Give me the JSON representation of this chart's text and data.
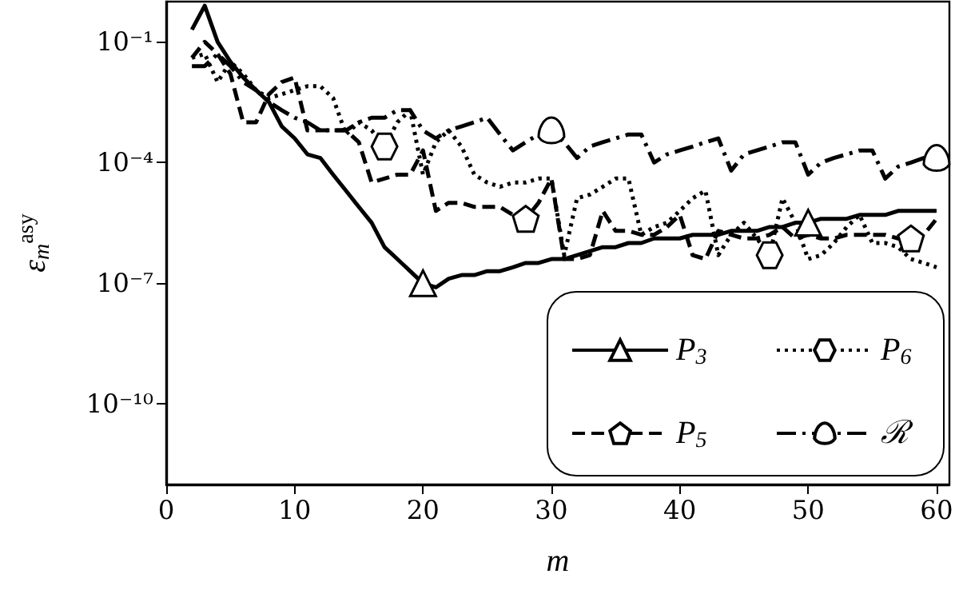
{
  "chart_data": {
    "type": "line",
    "xlabel": "m",
    "ylabel": "ε$_{m}$$^{asy}$",
    "x": [
      2,
      3,
      4,
      5,
      6,
      7,
      8,
      9,
      10,
      11,
      12,
      13,
      14,
      15,
      16,
      17,
      18,
      19,
      20,
      21,
      22,
      23,
      24,
      25,
      26,
      27,
      28,
      29,
      30,
      31,
      32,
      33,
      34,
      35,
      36,
      37,
      38,
      39,
      40,
      41,
      42,
      43,
      44,
      45,
      46,
      47,
      48,
      49,
      50,
      51,
      52,
      53,
      54,
      55,
      56,
      57,
      58,
      59,
      60
    ],
    "series": [
      {
        "name": "P$_{3}$",
        "color": "#000000",
        "line_style": "solid",
        "values": [
          0.2,
          0.79,
          0.1,
          0.032,
          0.013,
          0.0063,
          0.0032,
          0.00079,
          0.0004,
          0.00016,
          0.00013,
          5e-05,
          2e-05,
          7.9e-06,
          3.2e-06,
          7.9e-07,
          4e-07,
          2e-07,
          1e-07,
          7.9e-08,
          1.3e-07,
          1.6e-07,
          1.6e-07,
          2e-07,
          2e-07,
          2.5e-07,
          3.2e-07,
          3.2e-07,
          4e-07,
          4e-07,
          5e-07,
          6.3e-07,
          7.9e-07,
          7.9e-07,
          1e-06,
          1e-06,
          1.3e-06,
          1.3e-06,
          1.3e-06,
          1.6e-06,
          1.6e-06,
          1.6e-06,
          2e-06,
          2e-06,
          2e-06,
          2.5e-06,
          2.5e-06,
          3.2e-06,
          3.2e-06,
          4e-06,
          4e-06,
          4e-06,
          5e-06,
          5e-06,
          5e-06,
          6.3e-06,
          6.3e-06,
          6.3e-06,
          6.3e-06
        ]
      },
      {
        "name": "P$_{5}$",
        "color": "#000000",
        "line_style": "dashed",
        "values": [
          0.04,
          0.1,
          0.05,
          0.016,
          0.001,
          0.001,
          0.005,
          0.01,
          0.013,
          0.00063,
          0.00063,
          0.00063,
          0.00063,
          0.00032,
          3.2e-05,
          4e-05,
          5e-05,
          5e-05,
          0.0002,
          6.3e-06,
          1e-05,
          1e-05,
          7.9e-06,
          7.9e-06,
          7.9e-06,
          5e-06,
          4e-06,
          1e-05,
          4e-05,
          4e-07,
          4e-07,
          5e-07,
          6.3e-06,
          2e-06,
          2e-06,
          1.6e-06,
          1.6e-06,
          2.5e-06,
          5e-06,
          5e-07,
          4e-07,
          2e-06,
          1.6e-06,
          1.3e-06,
          1.3e-06,
          1.6e-06,
          2.5e-06,
          1.3e-06,
          1.6e-06,
          1.3e-06,
          1.3e-06,
          1.6e-06,
          1.6e-06,
          1.6e-06,
          1.6e-06,
          1.3e-06,
          1.3e-06,
          1.6e-06,
          4e-06
        ]
      },
      {
        "name": "P$_{6}$",
        "color": "#000000",
        "line_style": "dotted",
        "values": [
          0.04,
          0.05,
          0.01,
          0.032,
          0.016,
          0.0063,
          0.004,
          0.005,
          0.0063,
          0.0079,
          0.0079,
          0.004,
          0.0005,
          0.001,
          0.00063,
          0.00025,
          0.001,
          0.002,
          5e-05,
          0.00032,
          0.00063,
          0.00025,
          5e-05,
          3.2e-05,
          2.5e-05,
          3.2e-05,
          3.2e-05,
          4e-05,
          4e-05,
          5e-07,
          1.3e-05,
          1.6e-05,
          2.5e-05,
          4e-05,
          4e-05,
          1.6e-06,
          2.5e-06,
          3.2e-06,
          6.3e-06,
          1.3e-05,
          2e-05,
          5e-07,
          1.6e-06,
          3.2e-06,
          1.3e-06,
          5e-07,
          1.3e-05,
          3.2e-06,
          4e-07,
          5e-07,
          1e-06,
          2.5e-06,
          5e-06,
          1e-06,
          1e-06,
          7.9e-07,
          4e-07,
          3.2e-07,
          2.5e-07
        ]
      },
      {
        "name": "ℛ",
        "color": "#000000",
        "line_style": "dashdot",
        "values": [
          0.025,
          0.025,
          0.05,
          0.025,
          0.01,
          0.0063,
          0.0032,
          0.002,
          0.0013,
          0.001,
          0.00063,
          0.00063,
          0.00063,
          0.001,
          0.0013,
          0.0013,
          0.002,
          0.002,
          0.00063,
          0.0004,
          0.00063,
          0.00079,
          0.001,
          0.0013,
          0.0005,
          0.0002,
          0.00032,
          0.0005,
          0.00063,
          0.00032,
          0.00013,
          0.00025,
          0.00032,
          0.0004,
          0.0005,
          0.0005,
          0.0001,
          0.00016,
          0.0002,
          0.00025,
          0.00032,
          0.0004,
          6.3e-05,
          0.00016,
          0.0002,
          0.00025,
          0.00032,
          0.00032,
          5e-05,
          0.0001,
          0.00013,
          0.00016,
          0.0002,
          0.0002,
          4e-05,
          7.9e-05,
          0.0001,
          0.00013,
          0.00013
        ]
      }
    ],
    "log": "y",
    "xlim": [
      0,
      61
    ],
    "xticks": [
      0,
      10,
      20,
      30,
      40,
      50,
      60
    ],
    "ylim": [
      1e-12,
      1
    ],
    "yticks": [
      {
        "value": 0.1,
        "label": "10⁻¹"
      },
      {
        "value": 0.0001,
        "label": "10⁻⁴"
      },
      {
        "value": 1e-07,
        "label": "10⁻⁷"
      },
      {
        "value": 1e-10,
        "label": "10⁻¹⁰"
      }
    ],
    "legend": "bottom right",
    "grid": false
  }
}
